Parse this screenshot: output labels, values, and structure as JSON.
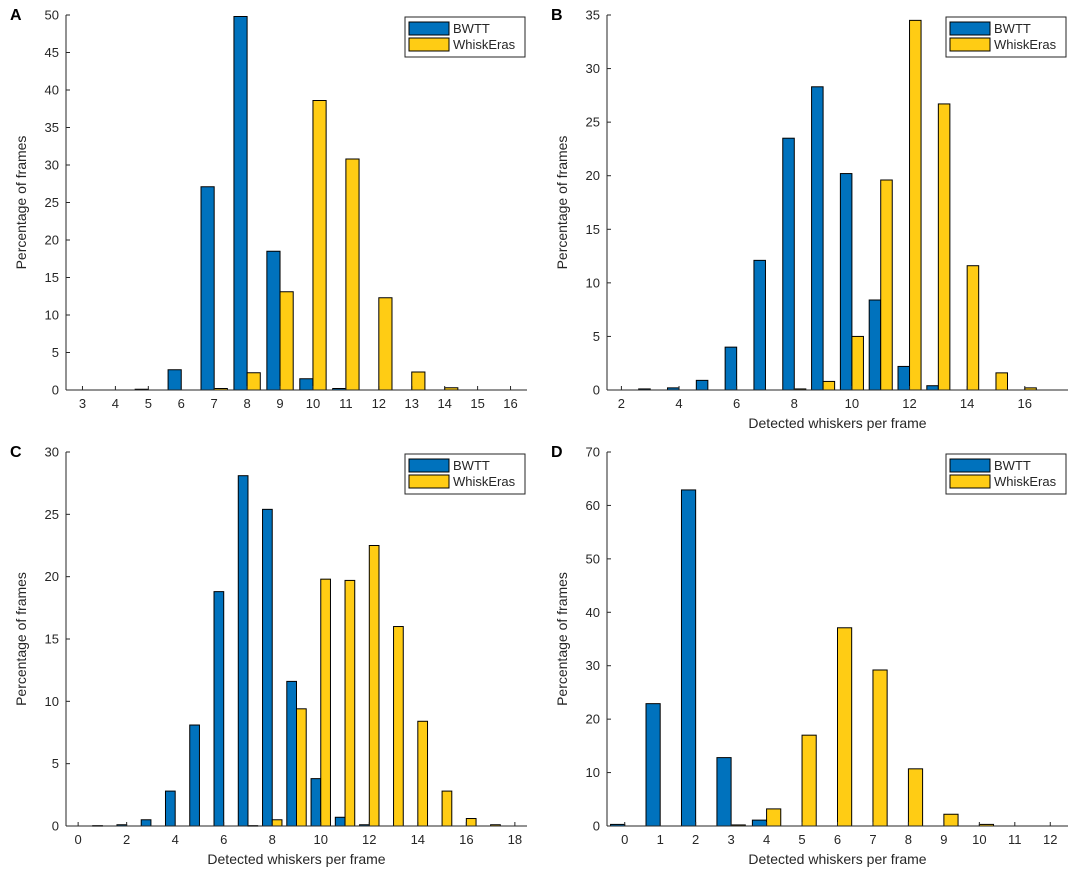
{
  "figure": {
    "colors": {
      "bwtt": "#0072BD",
      "whiskeras": "#FFCC14",
      "edge": "#000000",
      "axis": "#262626"
    }
  },
  "chart_data": [
    {
      "panel": "A",
      "type": "bar",
      "title": "",
      "xlabel": "",
      "ylabel": "Percentage of frames",
      "xlim": [
        2.5,
        16.5
      ],
      "ylim": [
        0,
        50
      ],
      "xticks": [
        3,
        4,
        5,
        6,
        7,
        8,
        9,
        10,
        11,
        12,
        13,
        14,
        15,
        16
      ],
      "yticks": [
        0,
        5,
        10,
        15,
        20,
        25,
        30,
        35,
        40,
        45,
        50
      ],
      "legend": {
        "position": "top-right",
        "entries": [
          "BWTT",
          "WhiskEras"
        ]
      },
      "series": [
        {
          "name": "BWTT",
          "x": [
            5,
            6,
            7,
            8,
            9,
            10,
            11
          ],
          "values": [
            0.1,
            2.7,
            27.1,
            49.8,
            18.5,
            1.5,
            0.2
          ]
        },
        {
          "name": "WhiskEras",
          "x": [
            7,
            8,
            9,
            10,
            11,
            12,
            13,
            14
          ],
          "values": [
            0.2,
            2.3,
            13.1,
            38.6,
            30.8,
            12.3,
            2.4,
            0.3
          ]
        }
      ]
    },
    {
      "panel": "B",
      "type": "bar",
      "title": "",
      "xlabel": "Detected whiskers per frame",
      "ylabel": "Percentage of frames",
      "xlim": [
        1.5,
        17.5
      ],
      "ylim": [
        0,
        35
      ],
      "xticks": [
        2,
        4,
        6,
        8,
        10,
        12,
        14,
        16
      ],
      "yticks": [
        0,
        5,
        10,
        15,
        20,
        25,
        30,
        35
      ],
      "legend": {
        "position": "top-right",
        "entries": [
          "BWTT",
          "WhiskEras"
        ]
      },
      "series": [
        {
          "name": "BWTT",
          "x": [
            3,
            4,
            5,
            6,
            7,
            8,
            9,
            10,
            11,
            12,
            13
          ],
          "values": [
            0.1,
            0.2,
            0.9,
            4.0,
            12.1,
            23.5,
            28.3,
            20.2,
            8.4,
            2.2,
            0.4
          ]
        },
        {
          "name": "WhiskEras",
          "x": [
            8,
            9,
            10,
            11,
            12,
            13,
            14,
            15,
            16
          ],
          "values": [
            0.1,
            0.8,
            5.0,
            19.6,
            34.5,
            26.7,
            11.6,
            1.6,
            0.2
          ]
        }
      ]
    },
    {
      "panel": "C",
      "type": "bar",
      "title": "",
      "xlabel": "Detected whiskers per frame",
      "ylabel": "Percentage of frames",
      "xlim": [
        -0.5,
        18.5
      ],
      "ylim": [
        0,
        30
      ],
      "xticks": [
        0,
        2,
        4,
        6,
        8,
        10,
        12,
        14,
        16,
        18
      ],
      "yticks": [
        0,
        5,
        10,
        15,
        20,
        25,
        30
      ],
      "legend": {
        "position": "top-right",
        "entries": [
          "BWTT",
          "WhiskEras"
        ]
      },
      "series": [
        {
          "name": "BWTT",
          "x": [
            1,
            2,
            3,
            4,
            5,
            6,
            7,
            8,
            9,
            10,
            11,
            12
          ],
          "values": [
            0.03,
            0.1,
            0.5,
            2.8,
            8.1,
            18.8,
            28.1,
            25.4,
            11.6,
            3.8,
            0.7,
            0.1
          ]
        },
        {
          "name": "WhiskEras",
          "x": [
            7,
            8,
            9,
            10,
            11,
            12,
            13,
            14,
            15,
            16,
            17
          ],
          "values": [
            0.03,
            0.5,
            9.4,
            19.8,
            19.7,
            22.5,
            16.0,
            8.4,
            2.8,
            0.6,
            0.1
          ]
        }
      ]
    },
    {
      "panel": "D",
      "type": "bar",
      "title": "",
      "xlabel": "Detected whiskers per frame",
      "ylabel": "Percentage of frames",
      "xlim": [
        -0.5,
        12.5
      ],
      "ylim": [
        0,
        70
      ],
      "xticks": [
        0,
        1,
        2,
        3,
        4,
        5,
        6,
        7,
        8,
        9,
        10,
        11,
        12
      ],
      "yticks": [
        0,
        10,
        20,
        30,
        40,
        50,
        60,
        70
      ],
      "legend": {
        "position": "top-right",
        "entries": [
          "BWTT",
          "WhiskEras"
        ]
      },
      "series": [
        {
          "name": "BWTT",
          "x": [
            0,
            1,
            2,
            3,
            4
          ],
          "values": [
            0.3,
            22.9,
            62.9,
            12.8,
            1.1
          ]
        },
        {
          "name": "WhiskEras",
          "x": [
            3,
            4,
            5,
            6,
            7,
            8,
            9,
            10
          ],
          "values": [
            0.2,
            3.2,
            17.0,
            37.1,
            29.2,
            10.7,
            2.2,
            0.3
          ]
        }
      ]
    }
  ]
}
